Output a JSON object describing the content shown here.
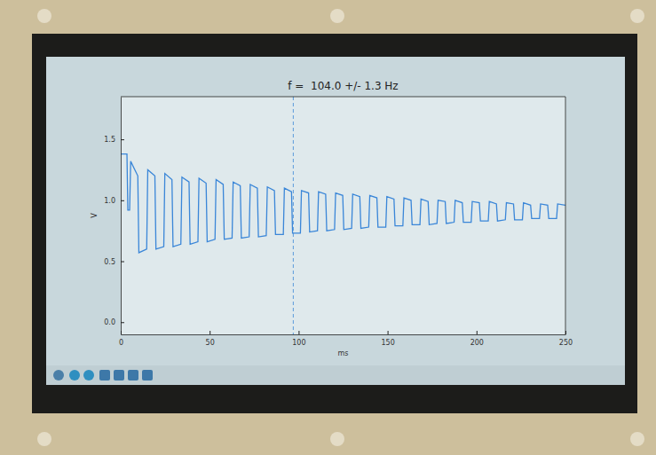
{
  "chart_data": {
    "type": "line",
    "title": "f =  104.0 +/- 1.3 Hz",
    "x_label": "ms",
    "y_label": "V",
    "color": "#3a86d8",
    "grid": false,
    "xlim": [
      0,
      250
    ],
    "xticks": [
      0,
      50,
      100,
      150,
      200,
      250
    ],
    "ylim": [
      -0.1,
      1.85
    ],
    "yticks": [
      {
        "value": 0,
        "label": "0.0"
      },
      0.5,
      {
        "value": 1,
        "label": "1.0"
      },
      1.5
    ],
    "vline_x": 97,
    "x": [
      0,
      3.5,
      4.0,
      5,
      5.6,
      9.6,
      10.2,
      14.6,
      15.2,
      19.2,
      19.8,
      24.2,
      24.8,
      28.8,
      29.4,
      33.8,
      34.4,
      38.4,
      39,
      43.4,
      44,
      48,
      48.6,
      53,
      53.6,
      57.6,
      58.2,
      62.6,
      63.2,
      67.2,
      67.8,
      72.2,
      72.8,
      76.8,
      77.4,
      81.8,
      82.4,
      86.4,
      87,
      91.4,
      92,
      96,
      96.6,
      101,
      101.6,
      105.6,
      106.2,
      110.6,
      111.2,
      115.2,
      115.8,
      120.2,
      120.8,
      124.8,
      125.4,
      129.8,
      130.4,
      134.4,
      135,
      139.4,
      140,
      144,
      144.6,
      149,
      149.6,
      153.6,
      154.2,
      158.6,
      159.2,
      163.2,
      163.8,
      168.2,
      168.8,
      172.8,
      173.4,
      177.8,
      178.4,
      182.4,
      183,
      187.4,
      188,
      192,
      192.6,
      197,
      197.6,
      201.6,
      202.2,
      206.6,
      207.2,
      211.2,
      211.8,
      216.2,
      216.8,
      220.8,
      221.4,
      225.8,
      226.4,
      230.4,
      231,
      235.4,
      236,
      240,
      240.6,
      245,
      245.6,
      250
    ],
    "values": [
      1.38,
      1.38,
      0.92,
      0.92,
      1.32,
      1.2,
      0.57,
      0.6,
      1.25,
      1.2,
      0.6,
      0.62,
      1.22,
      1.17,
      0.62,
      0.64,
      1.19,
      1.15,
      0.64,
      0.66,
      1.18,
      1.14,
      0.66,
      0.68,
      1.17,
      1.13,
      0.68,
      0.69,
      1.15,
      1.12,
      0.69,
      0.7,
      1.13,
      1.1,
      0.7,
      0.71,
      1.11,
      1.08,
      0.72,
      0.72,
      1.1,
      1.07,
      0.73,
      0.73,
      1.08,
      1.06,
      0.74,
      0.75,
      1.07,
      1.05,
      0.75,
      0.76,
      1.06,
      1.04,
      0.76,
      0.77,
      1.05,
      1.03,
      0.77,
      0.78,
      1.04,
      1.02,
      0.78,
      0.78,
      1.03,
      1.01,
      0.79,
      0.79,
      1.02,
      1.0,
      0.8,
      0.8,
      1.01,
      0.99,
      0.8,
      0.81,
      1.0,
      0.99,
      0.81,
      0.82,
      1.0,
      0.98,
      0.82,
      0.82,
      0.99,
      0.98,
      0.83,
      0.83,
      0.99,
      0.97,
      0.83,
      0.84,
      0.98,
      0.97,
      0.84,
      0.84,
      0.98,
      0.96,
      0.85,
      0.85,
      0.97,
      0.96,
      0.85,
      0.85,
      0.97,
      0.96
    ]
  }
}
